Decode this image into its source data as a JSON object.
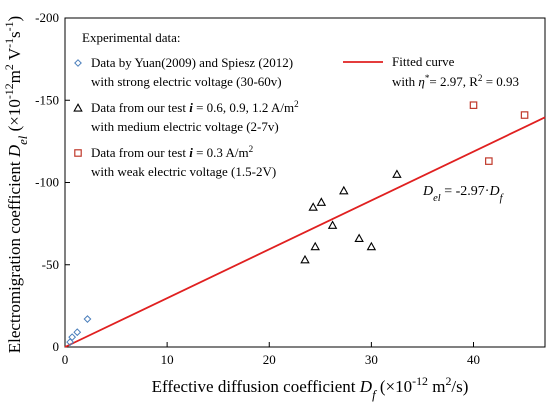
{
  "chart_data": {
    "type": "scatter",
    "xlabel": {
      "main": "Effective diffusion coefficient ",
      "var": "D",
      "sub": "f",
      "unit": " (×10",
      "exp": "-12",
      "unit2": " m",
      "exp2": "2",
      "unit3": "/s)"
    },
    "ylabel": {
      "main": "Electromigration coefficient ",
      "var": "D",
      "sub": "el",
      "unit": " (×10",
      "exp": "-12",
      "unit2": "m",
      "exp2": "2",
      "unit3": " V",
      "exp3": "-1",
      "unit4": "s",
      "exp4": "-1",
      "unit5": ")"
    },
    "xlim": [
      0,
      47
    ],
    "ylim": [
      0,
      -200
    ],
    "x_ticks": [
      0,
      10,
      20,
      30,
      40
    ],
    "y_ticks": [
      0,
      -50,
      -100,
      -150,
      -200
    ],
    "legend_title": "Experimental data:",
    "series": [
      {
        "name": "Data by Yuan(2009) and Spiesz (2012)",
        "name_line2": "with strong electric voltage (30-60v)",
        "marker": "diamond",
        "color": "#4a7ebb",
        "points": [
          [
            0.5,
            -3
          ],
          [
            0.7,
            -6
          ],
          [
            1.2,
            -9
          ],
          [
            2.2,
            -17
          ]
        ]
      },
      {
        "name": "Data from our test i = 0.6, 0.9, 1.2  A/m²",
        "name_parts": [
          "Data from our test ",
          "i",
          " = 0.6, 0.9, 1.2  A/m",
          "2"
        ],
        "name_line2": "with medium electric voltage (2-7v)",
        "marker": "triangle",
        "color": "#000000",
        "points": [
          [
            23.5,
            -53
          ],
          [
            24.3,
            -85
          ],
          [
            24.5,
            -61
          ],
          [
            25.1,
            -88
          ],
          [
            26.2,
            -74
          ],
          [
            27.3,
            -95
          ],
          [
            28.8,
            -66
          ],
          [
            30.0,
            -61
          ],
          [
            32.5,
            -105
          ]
        ]
      },
      {
        "name": "Data from our test i = 0.3 A/m²",
        "name_parts": [
          "Data from our test ",
          "i",
          " = 0.3 A/m",
          "2"
        ],
        "name_line2": "with weak electric voltage (1.5-2V)",
        "marker": "square",
        "color": "#c0392b",
        "points": [
          [
            40.0,
            -147
          ],
          [
            41.5,
            -113
          ],
          [
            45.0,
            -141
          ]
        ]
      },
      {
        "name": "Fitted curve",
        "name_line2": "with η* = 2.97, R² = 0.93",
        "marker": "line",
        "color": "#e02020",
        "slope": -2.97,
        "points": [
          [
            0,
            0
          ],
          [
            47,
            -139.6
          ]
        ]
      }
    ],
    "annotation": "Del = -2.97·Df",
    "annotation_parts": [
      "D",
      "el",
      " = -2.97·",
      "D",
      "f"
    ],
    "fit_label_parts": [
      "with ",
      "η",
      "*",
      "= 2.97, R",
      "2",
      " = 0.93"
    ],
    "grid": false,
    "legend_placement": "top-left"
  }
}
